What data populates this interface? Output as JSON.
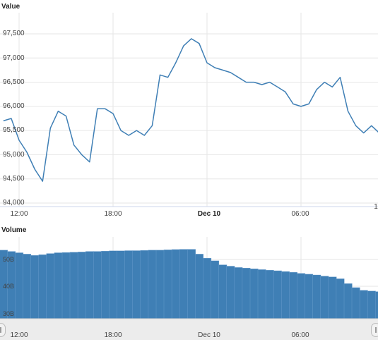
{
  "value_panel": {
    "title": "Value",
    "yticks": [
      "97,500",
      "97,000",
      "96,500",
      "96,000",
      "95,500",
      "95,000",
      "94,500",
      "94,000"
    ],
    "xticks": [
      "12:00",
      "18:00",
      "Dec 10",
      "06:00",
      "1"
    ]
  },
  "volume_panel": {
    "title": "Volume",
    "yticks": [
      "50B",
      "40B",
      "30B"
    ],
    "xticks": [
      "12:00",
      "18:00",
      "Dec 10",
      "06:00"
    ]
  },
  "footer_credit": "",
  "colors": {
    "line": "#3f7fb5",
    "bar": "#3f7fb5",
    "grid": "#e6e6e6",
    "navigator": "#ececec"
  },
  "chart_data": [
    {
      "type": "line",
      "title": "Value",
      "x_unit": "hours from 12:00",
      "ylim": [
        94000,
        97800
      ],
      "grid": true,
      "series": [
        {
          "x": [
            -1,
            -0.5,
            0,
            0.5,
            1,
            1.5,
            2,
            2.5,
            3,
            3.5,
            4,
            4.5,
            5,
            5.5,
            6,
            6.5,
            7,
            7.5,
            8,
            8.5,
            9,
            9.5,
            10,
            10.5,
            11,
            11.5,
            12,
            12.5,
            13,
            13.5,
            14,
            14.5,
            15,
            15.5,
            16,
            16.5,
            17,
            17.5,
            18,
            18.5,
            19,
            19.5,
            20,
            20.5,
            21,
            21.5,
            22,
            22.5,
            23,
            23.5,
            24
          ],
          "y": [
            95700,
            95750,
            95300,
            95050,
            94700,
            94450,
            95550,
            95900,
            95800,
            95200,
            95000,
            94850,
            95950,
            95950,
            95850,
            95500,
            95400,
            95500,
            95400,
            95600,
            96650,
            96600,
            96900,
            97250,
            97400,
            97300,
            96900,
            96800,
            96750,
            96700,
            96600,
            96500,
            96500,
            96450,
            96500,
            96400,
            96300,
            96050,
            96000,
            96050,
            96350,
            96500,
            96400,
            96600,
            95900,
            95600,
            95450,
            95600,
            95450,
            95150,
            95300
          ]
        }
      ]
    },
    {
      "type": "bar",
      "title": "Volume",
      "x_unit": "hours from 12:00",
      "ylim": [
        28,
        55
      ],
      "y_unit": "B",
      "grid": true,
      "series": [
        {
          "x": [
            -1,
            -0.5,
            0,
            0.5,
            1,
            1.5,
            2,
            2.5,
            3,
            3.5,
            4,
            4.5,
            5,
            5.5,
            6,
            6.5,
            7,
            7.5,
            8,
            8.5,
            9,
            9.5,
            10,
            10.5,
            11,
            11.5,
            12,
            12.5,
            13,
            13.5,
            14,
            14.5,
            15,
            15.5,
            16,
            16.5,
            17,
            17.5,
            18,
            18.5,
            19,
            19.5,
            20,
            20.5,
            21,
            21.5,
            22,
            22.5,
            23,
            23.5,
            24
          ],
          "y": [
            53.5,
            53,
            52.5,
            52,
            51.5,
            51.8,
            52.2,
            52.5,
            52.6,
            52.7,
            52.8,
            53,
            53,
            53.1,
            53.2,
            53.2,
            53.3,
            53.3,
            53.4,
            53.5,
            53.5,
            53.6,
            53.7,
            53.8,
            53.8,
            52,
            50.5,
            49.5,
            48,
            47.5,
            47,
            46.8,
            46.5,
            46.2,
            46,
            45.8,
            45.5,
            45.2,
            44.8,
            44.5,
            44.2,
            43.8,
            43.5,
            42.8,
            41,
            39.5,
            38.5,
            38.2,
            38,
            37.8,
            37.5
          ]
        }
      ]
    }
  ]
}
